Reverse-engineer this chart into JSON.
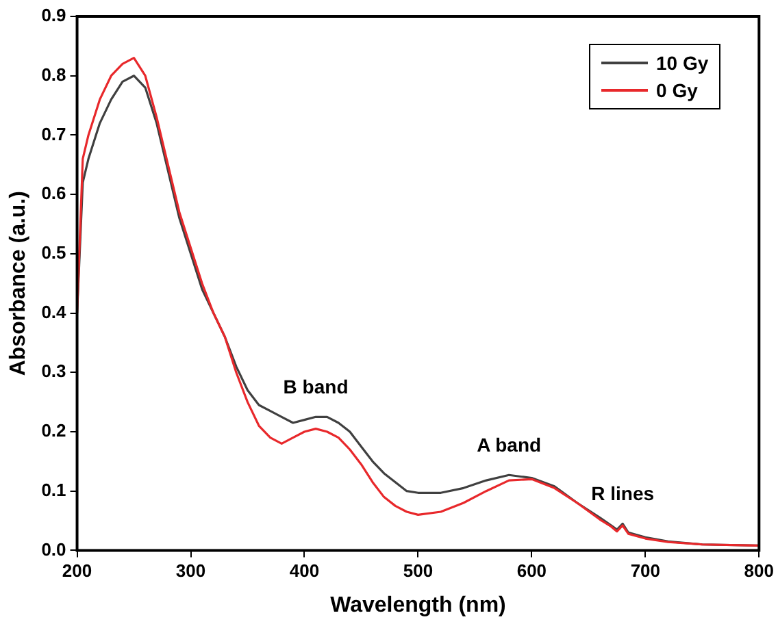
{
  "chart_data": {
    "type": "line",
    "xlabel": "Wavelength (nm)",
    "ylabel": "Absorbance (a.u.)",
    "xlim": [
      200,
      800
    ],
    "xticks": [
      200,
      300,
      400,
      500,
      600,
      700,
      800
    ],
    "ylim": [
      0,
      0.9
    ],
    "yticks": [
      {
        "value": 0,
        "label": "0.0"
      },
      0.1,
      0.2,
      0.3,
      0.4,
      0.5,
      0.6,
      0.7,
      0.8,
      0.9
    ],
    "grid": false,
    "legend": "top right",
    "marker": "none",
    "line_style": "solid",
    "x": [
      200,
      205,
      210,
      220,
      230,
      240,
      250,
      260,
      270,
      280,
      290,
      300,
      310,
      320,
      330,
      340,
      350,
      360,
      370,
      380,
      390,
      400,
      410,
      420,
      430,
      440,
      450,
      460,
      470,
      480,
      490,
      500,
      520,
      540,
      560,
      580,
      600,
      620,
      640,
      660,
      670,
      675,
      680,
      685,
      700,
      720,
      750,
      800
    ],
    "series": [
      {
        "name": "10 Gy",
        "color": "#404040",
        "values": [
          0.4,
          0.62,
          0.66,
          0.72,
          0.76,
          0.79,
          0.8,
          0.78,
          0.72,
          0.64,
          0.56,
          0.5,
          0.44,
          0.4,
          0.36,
          0.31,
          0.27,
          0.245,
          0.235,
          0.225,
          0.215,
          0.22,
          0.225,
          0.225,
          0.215,
          0.2,
          0.175,
          0.15,
          0.13,
          0.115,
          0.1,
          0.097,
          0.097,
          0.105,
          0.118,
          0.127,
          0.122,
          0.108,
          0.08,
          0.055,
          0.042,
          0.035,
          0.045,
          0.03,
          0.022,
          0.015,
          0.01,
          0.008
        ]
      },
      {
        "name": "0 Gy",
        "color": "#e8282b",
        "values": [
          0.4,
          0.66,
          0.7,
          0.76,
          0.8,
          0.82,
          0.83,
          0.8,
          0.73,
          0.65,
          0.57,
          0.51,
          0.45,
          0.4,
          0.36,
          0.3,
          0.25,
          0.21,
          0.19,
          0.18,
          0.19,
          0.2,
          0.205,
          0.2,
          0.19,
          0.17,
          0.145,
          0.115,
          0.09,
          0.075,
          0.065,
          0.06,
          0.065,
          0.08,
          0.1,
          0.118,
          0.12,
          0.105,
          0.08,
          0.052,
          0.04,
          0.032,
          0.042,
          0.028,
          0.02,
          0.014,
          0.01,
          0.008
        ]
      }
    ],
    "annotations": [
      {
        "text": "B band",
        "x": 410,
        "y": 0.225
      },
      {
        "text": "A band",
        "x": 580,
        "y": 0.127
      },
      {
        "text": "R lines",
        "x": 680,
        "y": 0.045
      }
    ]
  }
}
